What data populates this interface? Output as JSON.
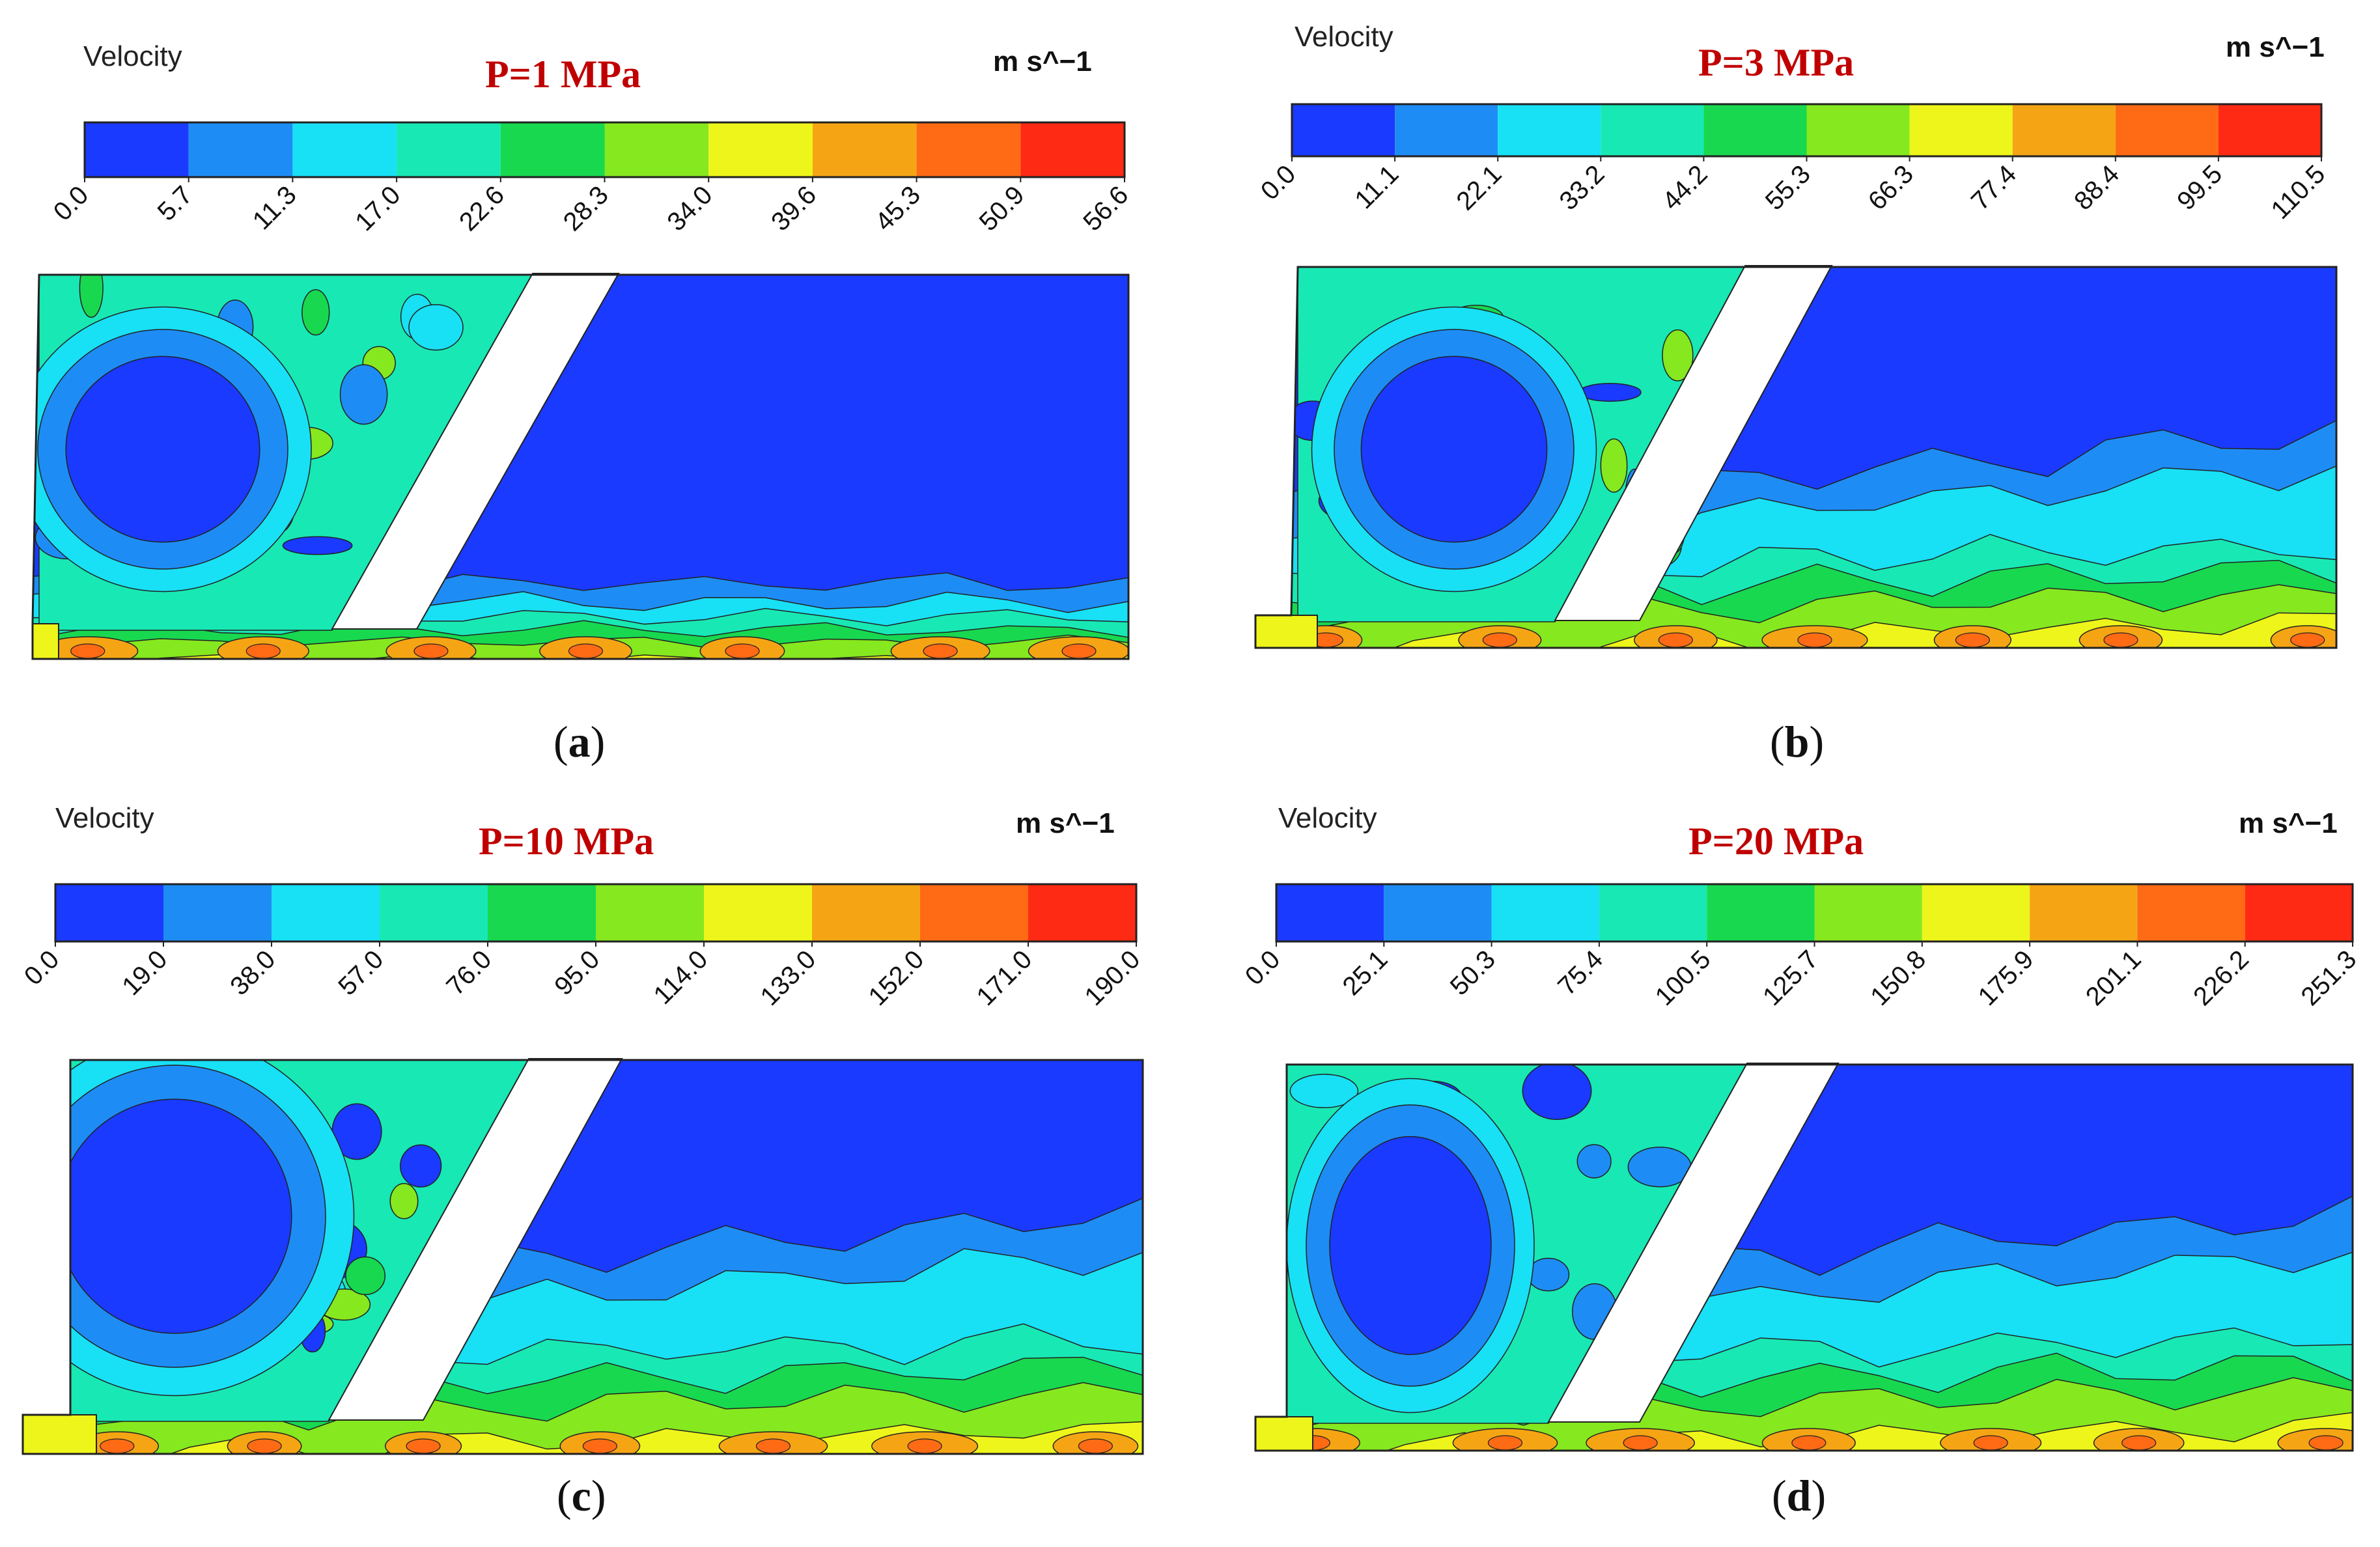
{
  "colors": {
    "scale": [
      "#1a3aff",
      "#1e8cf5",
      "#18e0f5",
      "#18e8b4",
      "#18d850",
      "#86e81e",
      "#eef51a",
      "#f5a514",
      "#ff6a14",
      "#ff2a14"
    ],
    "outline": "#222222",
    "pressure_text": "#c00000",
    "nozzle": "#ffffff"
  },
  "panels": [
    {
      "id": "a",
      "quantity_label": "Velocity",
      "pressure_label": "P=1 MPa",
      "units_label": "m s^−1",
      "ticks": [
        "0.0",
        "5.7",
        "11.3",
        "17.0",
        "22.6",
        "28.3",
        "34.0",
        "39.6",
        "45.3",
        "50.9",
        "56.6"
      ],
      "caption_open": "(",
      "caption_letter": "a",
      "caption_close": ")"
    },
    {
      "id": "b",
      "quantity_label": "Velocity",
      "pressure_label": "P=3 MPa",
      "units_label": "m s^−1",
      "ticks": [
        "0.0",
        "11.1",
        "22.1",
        "33.2",
        "44.2",
        "55.3",
        "66.3",
        "77.4",
        "88.4",
        "99.5",
        "110.5"
      ],
      "caption_open": "(",
      "caption_letter": "b",
      "caption_close": ")"
    },
    {
      "id": "c",
      "quantity_label": "Velocity",
      "pressure_label": "P=10 MPa",
      "units_label": "m s^−1",
      "ticks": [
        "0.0",
        "19.0",
        "38.0",
        "57.0",
        "76.0",
        "95.0",
        "114.0",
        "133.0",
        "152.0",
        "171.0",
        "190.0"
      ],
      "caption_open": "(",
      "caption_letter": "c",
      "caption_close": ")"
    },
    {
      "id": "d",
      "quantity_label": "Velocity",
      "pressure_label": "P=20 MPa",
      "units_label": "m s^−1",
      "ticks": [
        "0.0",
        "25.1",
        "50.3",
        "75.4",
        "100.5",
        "125.7",
        "150.8",
        "175.9",
        "201.1",
        "226.2",
        "251.3"
      ],
      "caption_open": "(",
      "caption_letter": "d",
      "caption_close": ")"
    }
  ]
}
